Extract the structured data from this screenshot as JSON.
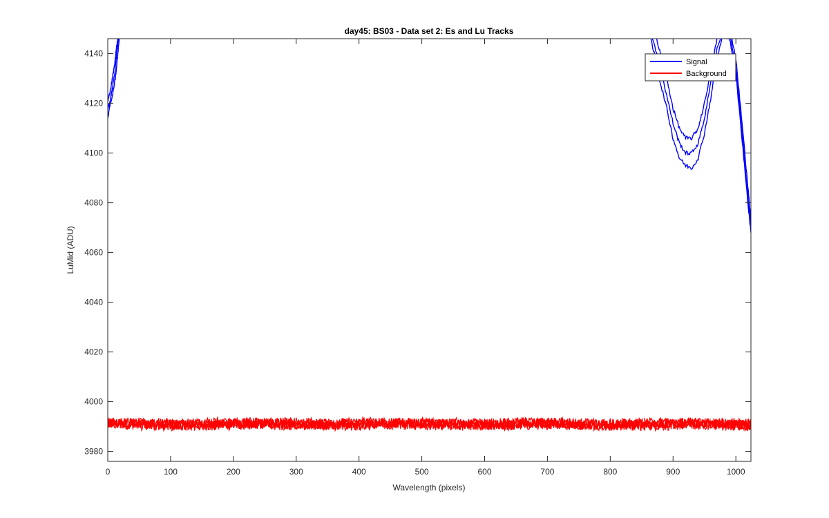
{
  "chart_data": {
    "type": "line",
    "title": "day45: BS03 - Data set 2: Es and Lu Tracks",
    "xlabel": "Wavelength (pixels)",
    "ylabel": "LuMid (ADU)",
    "xlim": [
      0,
      1024
    ],
    "ylim": [
      3976,
      4146
    ],
    "xticks": [
      0,
      100,
      200,
      300,
      400,
      500,
      600,
      700,
      800,
      900,
      1000
    ],
    "yticks": [
      3980,
      4000,
      4020,
      4040,
      4060,
      4080,
      4100,
      4120,
      4140
    ],
    "grid": false,
    "legend_position": "top-right",
    "legend": [
      {
        "label": "Signal",
        "color": "#0000ff"
      },
      {
        "label": "Background",
        "color": "#ff0000"
      }
    ],
    "series": [
      {
        "name": "Signal",
        "color": "#0000ff",
        "traces": [
          {
            "x": [
              0,
              4,
              8,
              12,
              16,
              20,
              24
            ],
            "y": [
              4114,
              4120,
              4124,
              4130,
              4140,
              4150,
              4160
            ]
          },
          {
            "x": [
              0,
              4,
              8,
              12,
              16,
              20,
              24
            ],
            "y": [
              4118,
              4121,
              4127,
              4134,
              4144,
              4153,
              4162
            ]
          },
          {
            "x": [
              0,
              4,
              8,
              12,
              16,
              20,
              24
            ],
            "y": [
              4121,
              4125,
              4131,
              4138,
              4147,
              4156,
              4165
            ]
          },
          {
            "x": [
              860,
              870,
              880,
              890,
              900,
              910,
              920,
              930,
              940,
              950,
              960,
              970,
              980,
              990,
              1000,
              1010,
              1020,
              1024
            ],
            "y": [
              4150,
              4140,
              4128,
              4118,
              4106,
              4098,
              4095,
              4094,
              4098,
              4108,
              4122,
              4138,
              4148,
              4146,
              4132,
              4105,
              4078,
              4068
            ]
          },
          {
            "x": [
              860,
              870,
              880,
              890,
              900,
              910,
              920,
              930,
              940,
              950,
              960,
              970,
              980,
              990,
              1000,
              1010,
              1020,
              1024
            ],
            "y": [
              4152,
              4144,
              4134,
              4123,
              4112,
              4104,
              4100,
              4100,
              4104,
              4114,
              4128,
              4142,
              4150,
              4149,
              4134,
              4108,
              4080,
              4070
            ]
          },
          {
            "x": [
              860,
              870,
              880,
              890,
              900,
              910,
              920,
              930,
              940,
              950,
              960,
              970,
              980,
              990,
              1000,
              1010,
              1020,
              1024
            ],
            "y": [
              4155,
              4149,
              4140,
              4130,
              4118,
              4110,
              4106,
              4106,
              4110,
              4120,
              4133,
              4146,
              4153,
              4151,
              4138,
              4112,
              4084,
              4073
            ]
          }
        ]
      },
      {
        "name": "Background",
        "color": "#ff0000",
        "mean": 3991,
        "noise_amplitude": 2.2,
        "traces_count": 4,
        "x_range": [
          0,
          1024
        ]
      }
    ]
  }
}
